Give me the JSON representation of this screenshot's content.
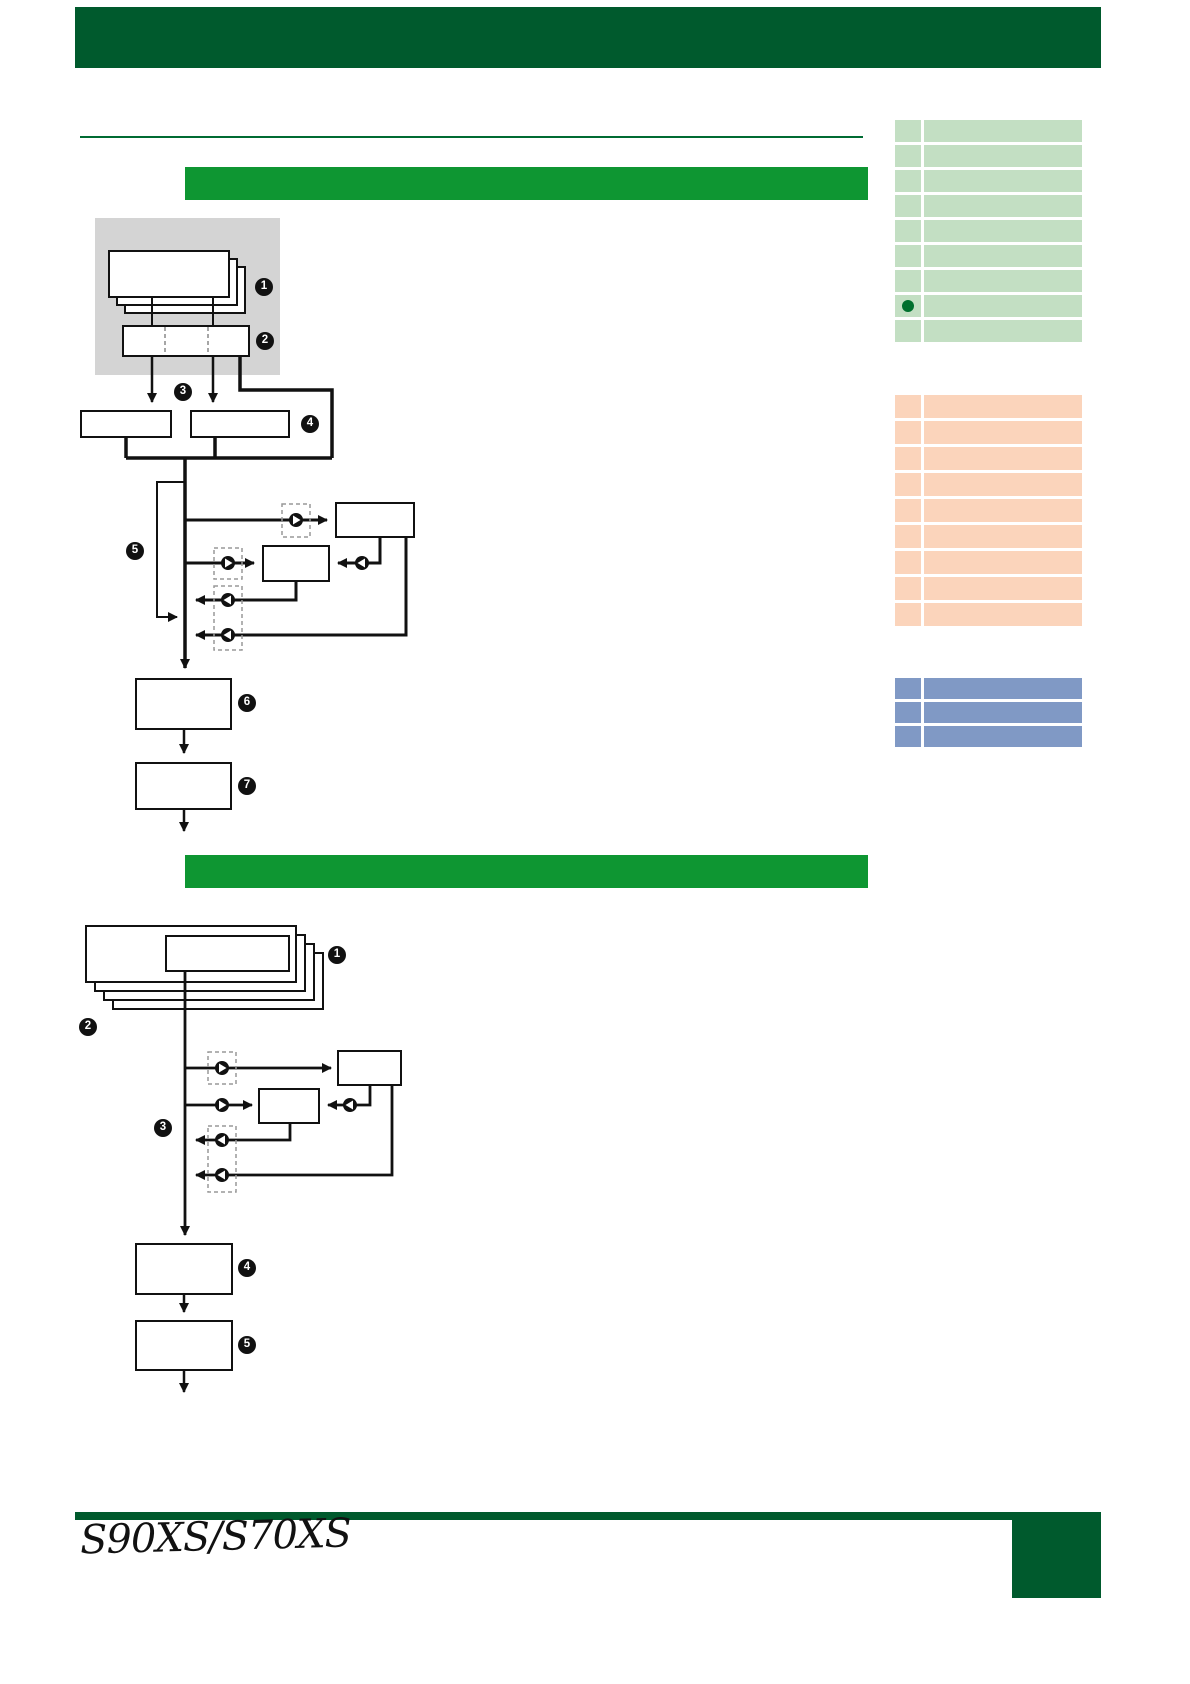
{
  "page": {
    "logo_text": "S90XS/S70XS",
    "header_text": "",
    "section1_title": "",
    "section2_title": "",
    "footer_block_text": "",
    "colors": {
      "header_green": "#005a2d",
      "section_green": "#0e9632",
      "rule_green": "#006b33",
      "table_green": "#c3dfc3",
      "table_orange": "#fbd4bb",
      "table_blue": "#8099c5",
      "marker_dot_green": "#00702e",
      "panel_gray": "#d4d4d4"
    }
  },
  "diagram1": {
    "badges": [
      "1",
      "2",
      "3",
      "4",
      "5",
      "6",
      "7"
    ]
  },
  "diagram2": {
    "badges": [
      "1",
      "2",
      "3",
      "4",
      "5"
    ]
  },
  "sidebar": {
    "green_table": {
      "rows": 9,
      "marker_row": 8
    },
    "orange_table": {
      "rows": 9,
      "marker_row": 0
    },
    "blue_table": {
      "rows": 3,
      "marker_row": 0
    }
  }
}
